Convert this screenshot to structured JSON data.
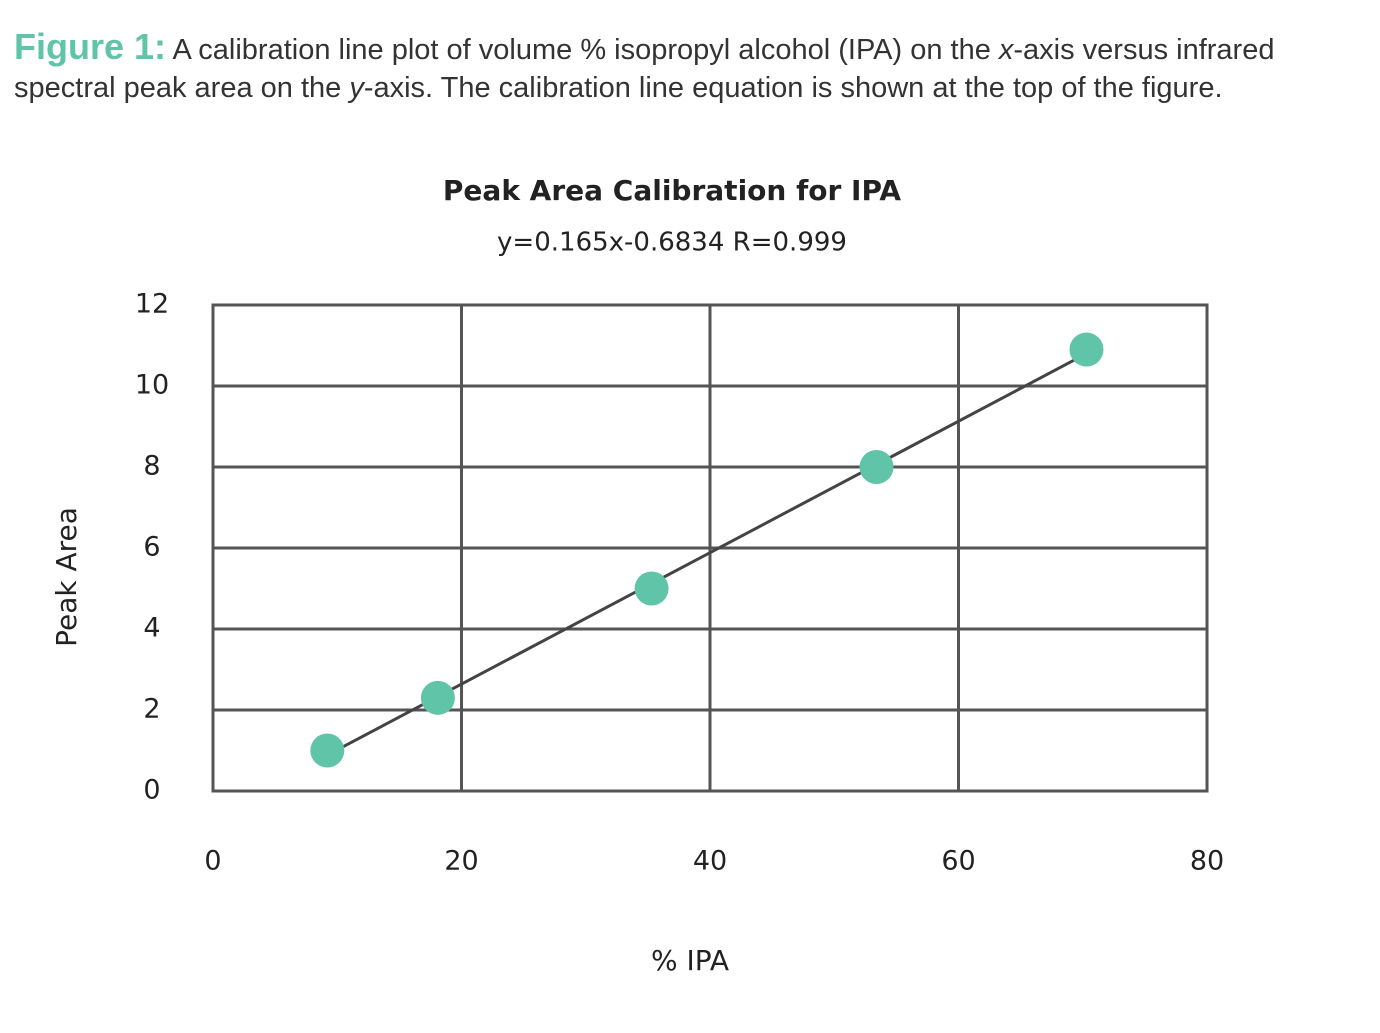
{
  "caption": {
    "label": "Figure 1:",
    "parts": [
      "A calibration line plot of volume % isopropyl alcohol (IPA) on the ",
      "x",
      "-axis versus infrared spectral peak area on the ",
      "y",
      "-axis. The calibration line equation is shown at the top of the figure."
    ]
  },
  "chart_data": {
    "type": "scatter",
    "title": "Peak Area Calibration for IPA",
    "subtitle": "y=0.165x-0.6834 R=0.999",
    "x_label": "% IPA",
    "y_label": "Peak Area",
    "x": [
      9.2,
      18.1,
      35.3,
      53.4,
      70.3
    ],
    "values": [
      1.0,
      2.3,
      5.0,
      8.0,
      10.9
    ],
    "color": "#5fc4a8",
    "trendline": true,
    "xlim": [
      0,
      80
    ],
    "xticks": [
      0,
      20,
      40,
      60,
      80
    ],
    "ylim": [
      0,
      12
    ],
    "yticks": [
      0,
      2,
      4,
      6,
      8,
      10,
      12
    ],
    "grid": true
  }
}
